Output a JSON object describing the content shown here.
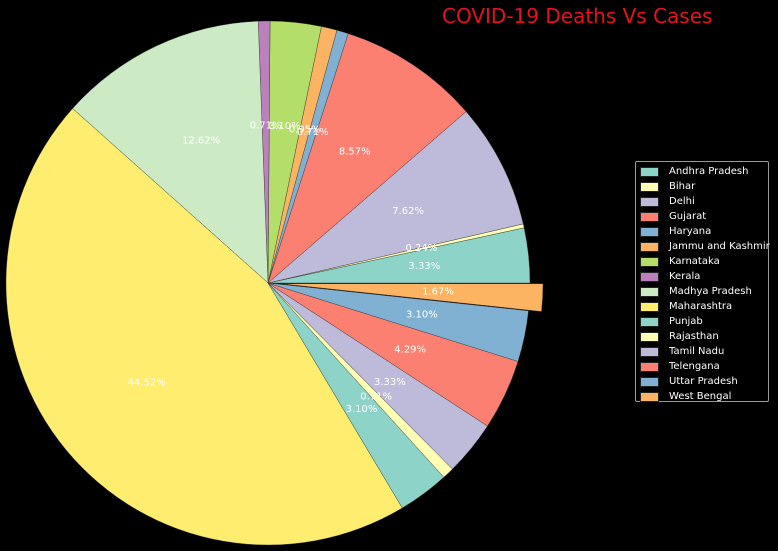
{
  "chart_data": {
    "type": "pie",
    "title": "COVID-19 Deaths Vs Cases",
    "legend_position": "right",
    "slices": [
      {
        "label": "Andhra Pradesh",
        "value": 3.33,
        "pct_label": "3.33%",
        "color": "#8dd3c7",
        "explode": 0
      },
      {
        "label": "Bihar",
        "value": 0.24,
        "pct_label": "0.24%",
        "color": "#ffffb3",
        "explode": 0
      },
      {
        "label": "Delhi",
        "value": 7.62,
        "pct_label": "7.62%",
        "color": "#bebada",
        "explode": 0
      },
      {
        "label": "Gujarat",
        "value": 8.57,
        "pct_label": "8.57%",
        "color": "#fb8072",
        "explode": 0
      },
      {
        "label": "Haryana",
        "value": 0.71,
        "pct_label": "0.71%",
        "color": "#80b1d3",
        "explode": 0
      },
      {
        "label": "Jammu and Kashmir",
        "value": 0.95,
        "pct_label": "0.95%",
        "color": "#fdb462",
        "explode": 0
      },
      {
        "label": "Karnataka",
        "value": 3.1,
        "pct_label": "3.10%",
        "color": "#b3de69",
        "explode": 0
      },
      {
        "label": "Kerala",
        "value": 0.71,
        "pct_label": "0.71%",
        "color": "#bc80bd",
        "explode": 0
      },
      {
        "label": "Madhya Pradesh",
        "value": 12.62,
        "pct_label": "12.62%",
        "color": "#ccebc5",
        "explode": 0
      },
      {
        "label": "Maharashtra",
        "value": 44.52,
        "pct_label": "44.52%",
        "color": "#ffed6f",
        "explode": 0
      },
      {
        "label": "Punjab",
        "value": 3.1,
        "pct_label": "3.10%",
        "color": "#8dd3c7",
        "explode": 0
      },
      {
        "label": "Rajasthan",
        "value": 0.71,
        "pct_label": "0.71%",
        "color": "#ffffb3",
        "explode": 0
      },
      {
        "label": "Tamil Nadu",
        "value": 3.33,
        "pct_label": "3.33%",
        "color": "#bebada",
        "explode": 0
      },
      {
        "label": "Telengana",
        "value": 4.29,
        "pct_label": "4.29%",
        "color": "#fb8072",
        "explode": 0
      },
      {
        "label": "Uttar Pradesh",
        "value": 3.1,
        "pct_label": "3.10%",
        "color": "#80b1d3",
        "explode": 0
      },
      {
        "label": "West Bengal",
        "value": 1.67,
        "pct_label": "1.67%",
        "color": "#fdb462",
        "explode": 1
      }
    ]
  }
}
